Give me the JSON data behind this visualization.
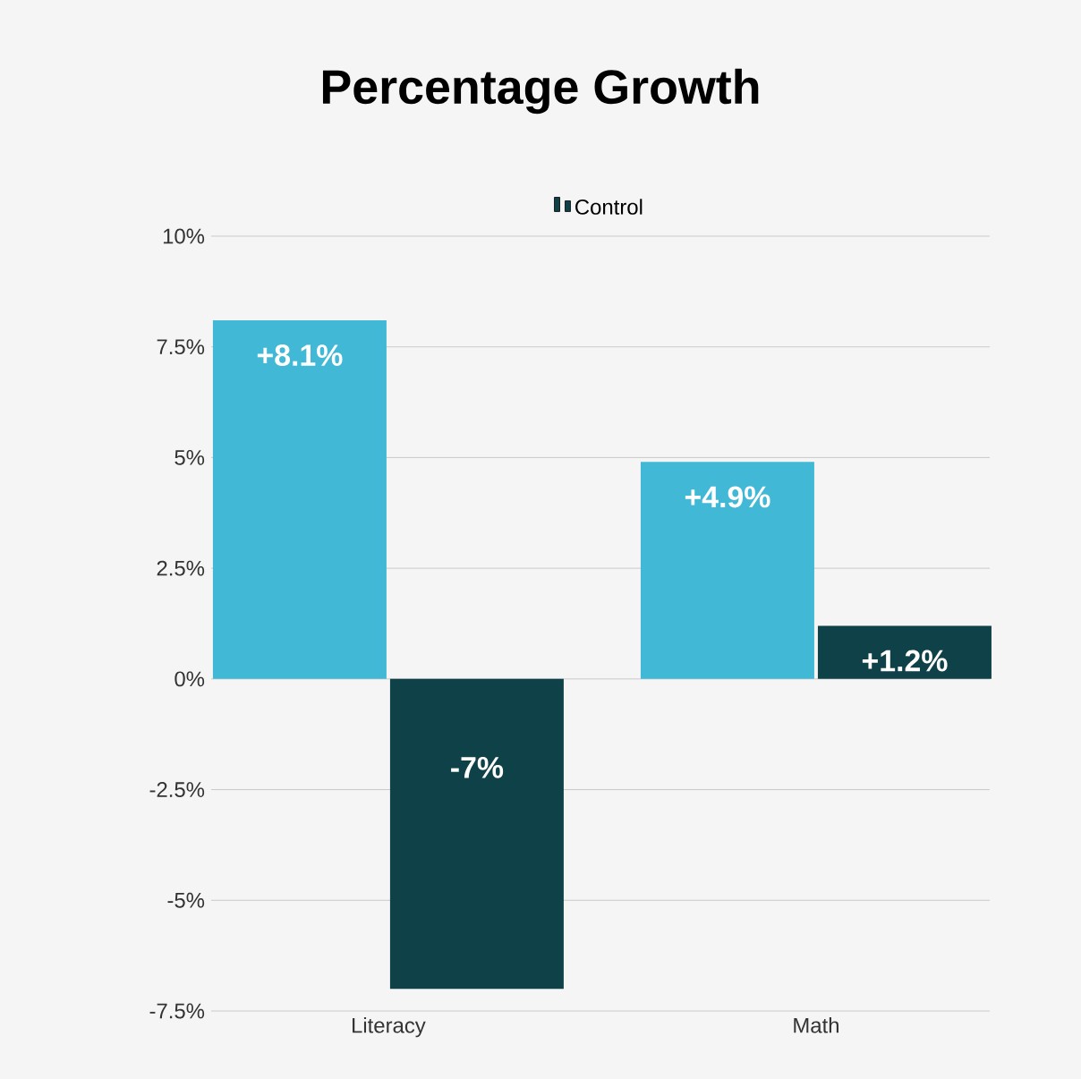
{
  "chart_data": {
    "type": "bar",
    "title": "Percentage Growth",
    "categories": [
      "Literacy",
      "Math"
    ],
    "series": [
      {
        "color": "#41b8d5",
        "values": [
          8.1,
          4.9
        ],
        "value_labels": [
          "+8.1%",
          "+4.9%"
        ]
      },
      {
        "name": "Control",
        "color": "#0f4148",
        "values": [
          -7,
          1.2
        ],
        "value_labels": [
          "-7%",
          "+1.2%"
        ]
      }
    ],
    "ylim": [
      -7.5,
      10
    ],
    "yticks": [
      {
        "value": -7.5,
        "label": "-7.5%"
      },
      {
        "value": -5,
        "label": "-5%"
      },
      {
        "value": -2.5,
        "label": "-2.5%"
      },
      {
        "value": 0,
        "label": "0%"
      },
      {
        "value": 2.5,
        "label": "2.5%"
      },
      {
        "value": 5,
        "label": "5%"
      },
      {
        "value": 7.5,
        "label": "7.5%"
      },
      {
        "value": 10,
        "label": "10%"
      }
    ],
    "grid": "y",
    "legend": "top"
  }
}
